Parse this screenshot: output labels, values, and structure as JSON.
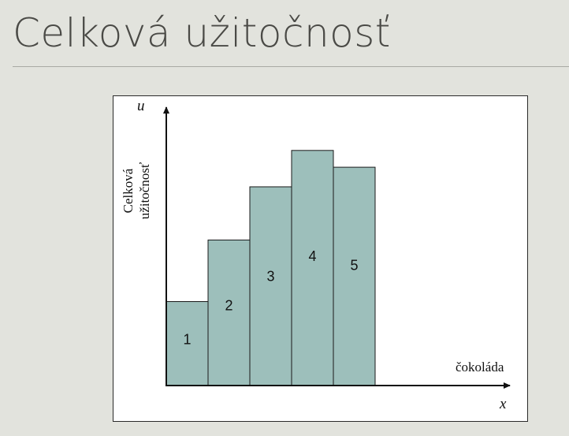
{
  "slide": {
    "title": "Celková užitočnosť"
  },
  "colors": {
    "background": "#e2e3dd",
    "bar_fill": "#9dbfbb",
    "title_text": "#4a4a46"
  },
  "chart_data": {
    "type": "bar",
    "categories": [
      "1",
      "2",
      "3",
      "4",
      "5"
    ],
    "values": [
      30,
      52,
      71,
      84,
      78
    ],
    "ylim": [
      0,
      100
    ],
    "xlabel": "čokoláda",
    "ylabel": [
      "Celková",
      "užitočnosť"
    ],
    "x_axis_symbol": "x",
    "y_axis_symbol": "u",
    "grid": false,
    "legend": "none"
  }
}
